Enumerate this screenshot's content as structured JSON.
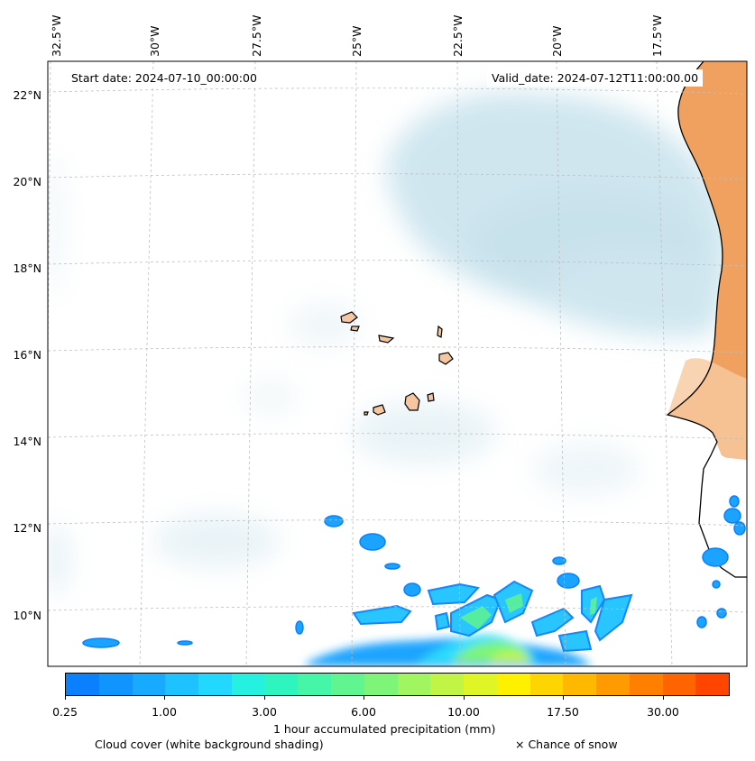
{
  "map": {
    "longitude_labels": [
      "32.5°W",
      "30°W",
      "27.5°W",
      "25°W",
      "22.5°W",
      "20°W",
      "17.5°W"
    ],
    "latitude_labels": [
      "22°N",
      "20°N",
      "18°N",
      "16°N",
      "14°N",
      "12°N",
      "10°N"
    ],
    "start_date": "Start date: 2024-07-10_00:00:00",
    "valid_date": "Valid_date: 2024-07-12T11:00:00.00",
    "colors": {
      "cloud": "#a9d3e3",
      "land_dry": "#f0a15f",
      "island_fill": "#f5c6a0",
      "coast": "#000000",
      "gridline": "#bfbfbf"
    }
  },
  "colorbar": {
    "label": "1 hour accumulated precipitation (mm)",
    "tick_labels": [
      "0.25",
      "1.00",
      "3.00",
      "6.00",
      "10.00",
      "17.50",
      "30.00"
    ],
    "colors": [
      "#0a80ff",
      "#1095ff",
      "#18aaff",
      "#1dc2ff",
      "#22d8ff",
      "#26f0e0",
      "#2ef5c0",
      "#45f5a8",
      "#60f590",
      "#7ef578",
      "#a0f560",
      "#c0f545",
      "#e0f525",
      "#fff000",
      "#ffd500",
      "#ffb800",
      "#ff9a00",
      "#ff7f00",
      "#ff6400",
      "#ff4500"
    ]
  },
  "captions": {
    "cloud_cover": "Cloud cover (white background shading)",
    "snow": "× Chance of snow"
  }
}
